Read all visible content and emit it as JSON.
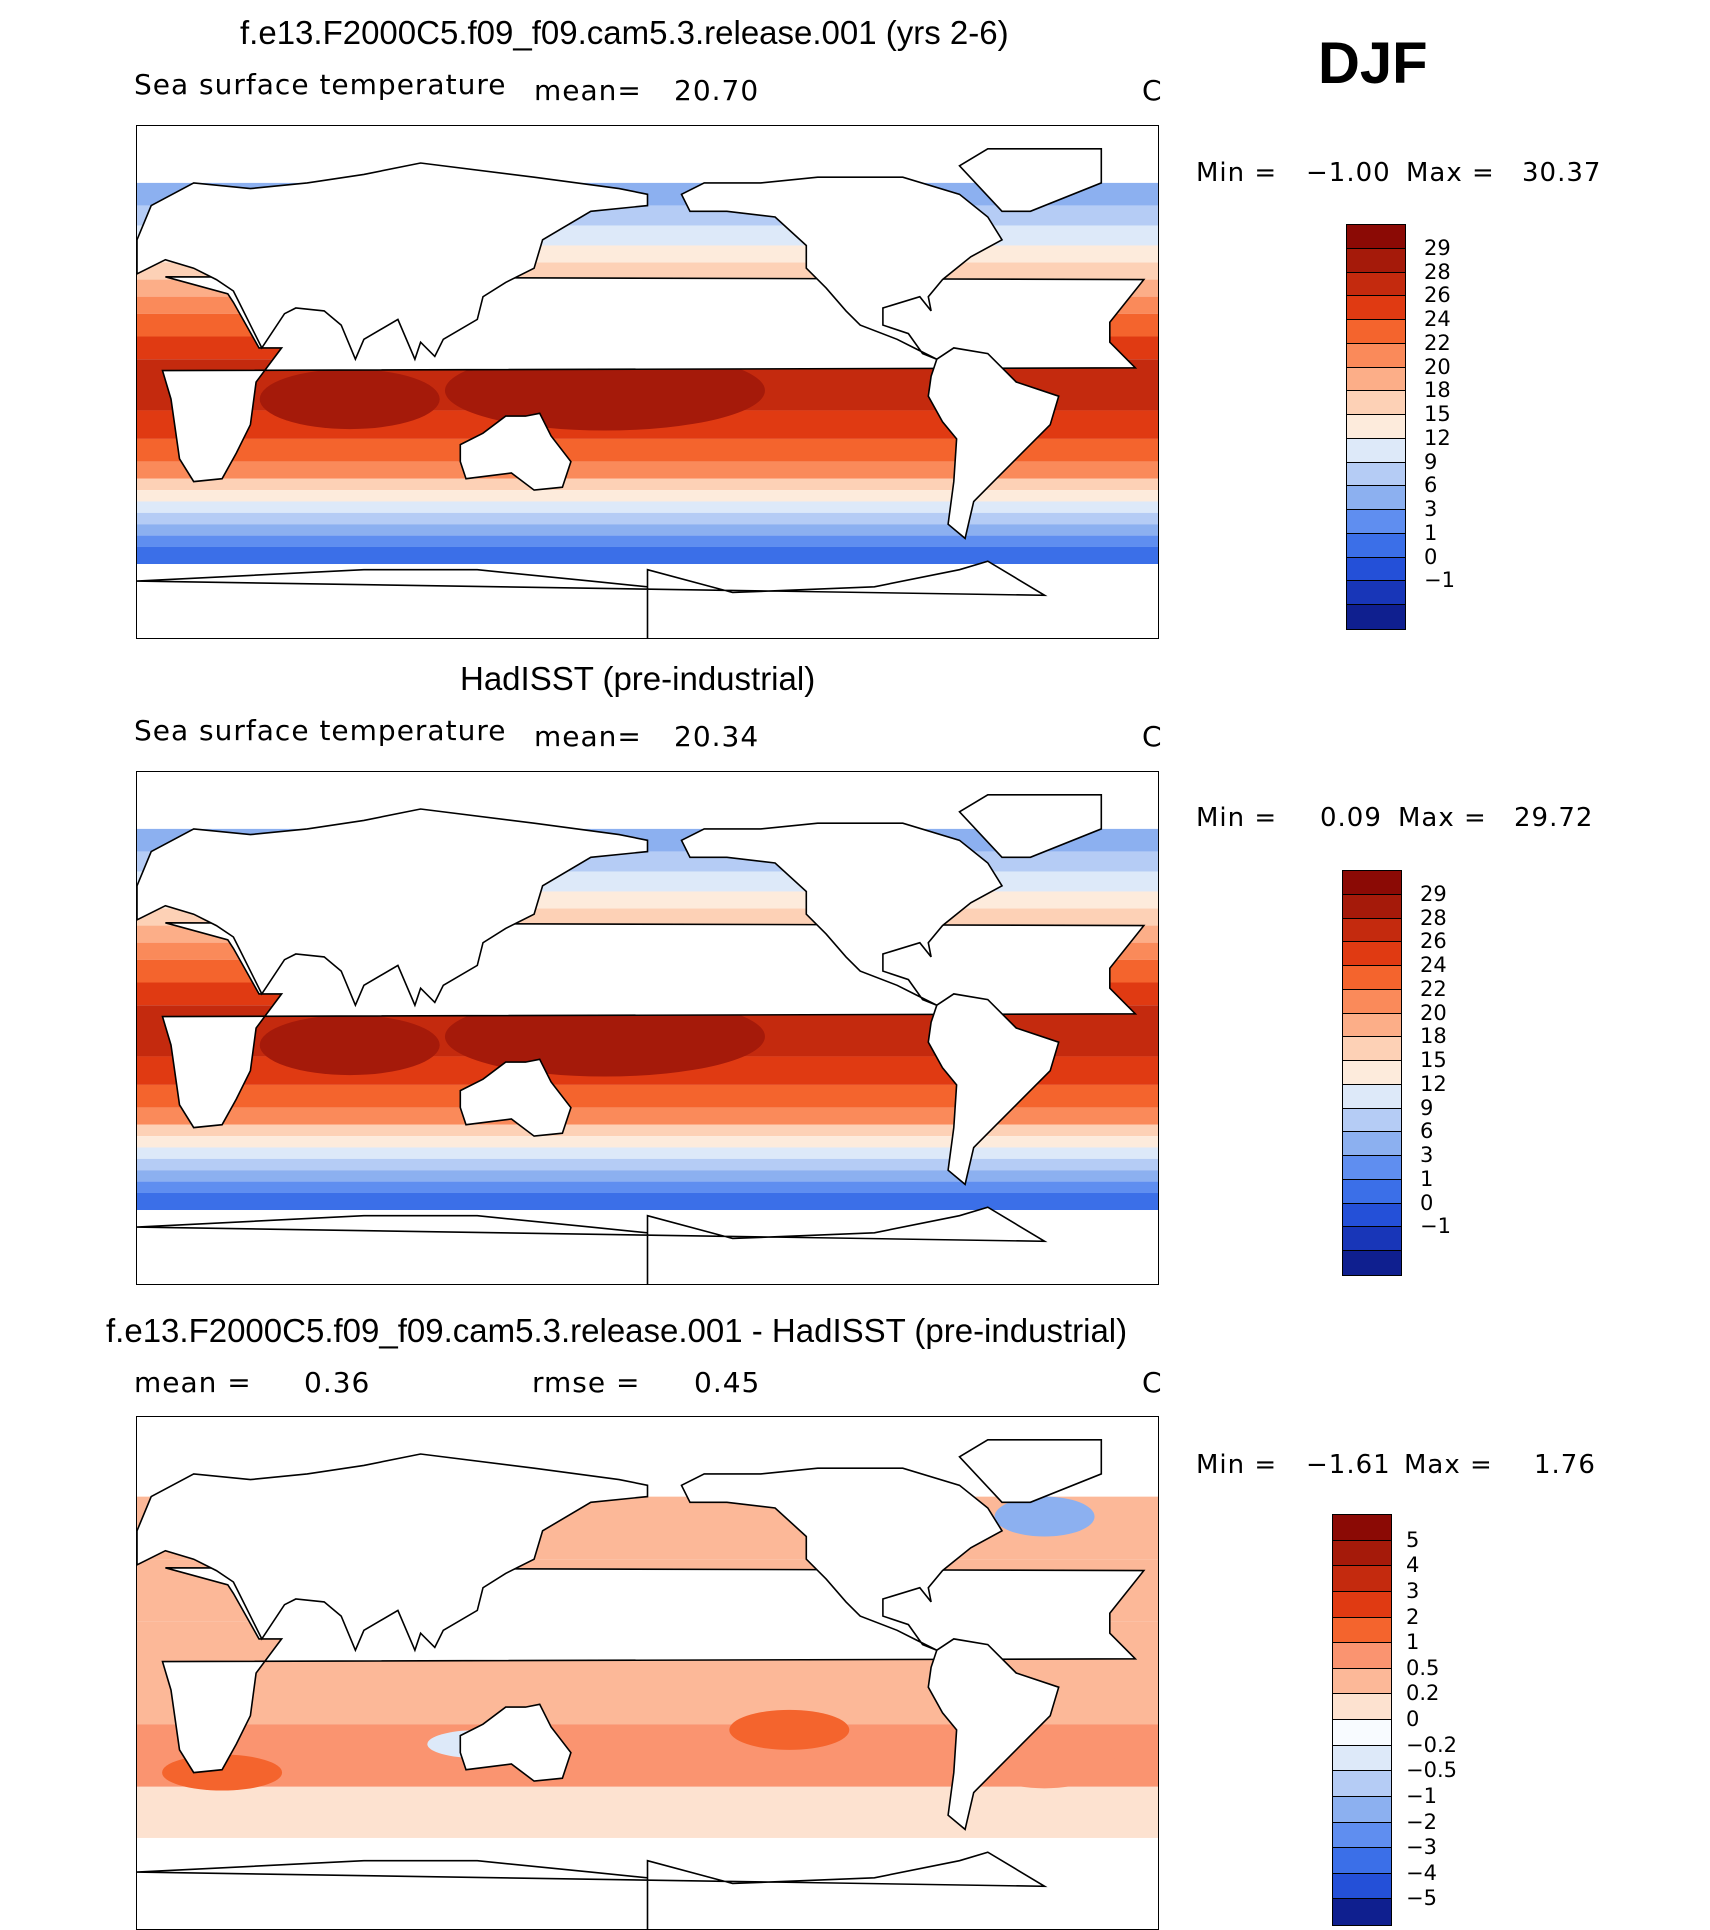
{
  "season": "DJF",
  "panels": [
    {
      "title": "f.e13.F2000C5.f09_f09.cam5.3.release.001 (yrs 2-6)",
      "variable": "Sea surface temperature",
      "mean_label": "mean=",
      "mean_value": "20.70",
      "units": "C",
      "min_label": "Min =",
      "min_value": "−1.00",
      "max_label": "Max =",
      "max_value": "30.37",
      "colorbar": {
        "labels": [
          "29",
          "28",
          "26",
          "24",
          "22",
          "20",
          "18",
          "15",
          "12",
          "9",
          "6",
          "3",
          "1",
          "0",
          "−1"
        ],
        "colors": [
          "#8b0a05",
          "#a51a0a",
          "#c42a0e",
          "#e03a12",
          "#f4642d",
          "#fa8a5a",
          "#fcae88",
          "#fdd1b6",
          "#fdebdc",
          "#dde9f9",
          "#b5ccf5",
          "#8cb0f0",
          "#5f8ef0",
          "#3b6fe8",
          "#2450d8",
          "#1836b8",
          "#0f1f8f"
        ]
      }
    },
    {
      "title": "HadISST (pre-industrial)",
      "variable": "Sea surface temperature",
      "mean_label": "mean=",
      "mean_value": "20.34",
      "units": "C",
      "min_label": "Min =",
      "min_value": "0.09",
      "max_label": "Max =",
      "max_value": "29.72",
      "colorbar": {
        "labels": [
          "29",
          "28",
          "26",
          "24",
          "22",
          "20",
          "18",
          "15",
          "12",
          "9",
          "6",
          "3",
          "1",
          "0",
          "−1"
        ],
        "colors": [
          "#8b0a05",
          "#a51a0a",
          "#c42a0e",
          "#e03a12",
          "#f4642d",
          "#fa8a5a",
          "#fcae88",
          "#fdd1b6",
          "#fdebdc",
          "#dde9f9",
          "#b5ccf5",
          "#8cb0f0",
          "#5f8ef0",
          "#3b6fe8",
          "#2450d8",
          "#1836b8",
          "#0f1f8f"
        ]
      }
    },
    {
      "title": "f.e13.F2000C5.f09_f09.cam5.3.release.001 - HadISST (pre-industrial)",
      "mean_label": "mean =",
      "mean_value": "0.36",
      "rmse_label": "rmse =",
      "rmse_value": "0.45",
      "units": "C",
      "min_label": "Min =",
      "min_value": "−1.61",
      "max_label": "Max =",
      "max_value": "1.76",
      "colorbar": {
        "labels": [
          "5",
          "4",
          "3",
          "2",
          "1",
          "0.5",
          "0.2",
          "0",
          "−0.2",
          "−0.5",
          "−1",
          "−2",
          "−3",
          "−4",
          "−5"
        ],
        "colors": [
          "#8b0a05",
          "#a51a0a",
          "#c42a0e",
          "#e03a12",
          "#f4642d",
          "#fa9470",
          "#fcb898",
          "#fde2d0",
          "#f8fbff",
          "#dde9f9",
          "#b5ccf5",
          "#8cb0f0",
          "#5f8ef0",
          "#3b6fe8",
          "#2450d8",
          "#0f1f8f"
        ]
      }
    }
  ]
}
